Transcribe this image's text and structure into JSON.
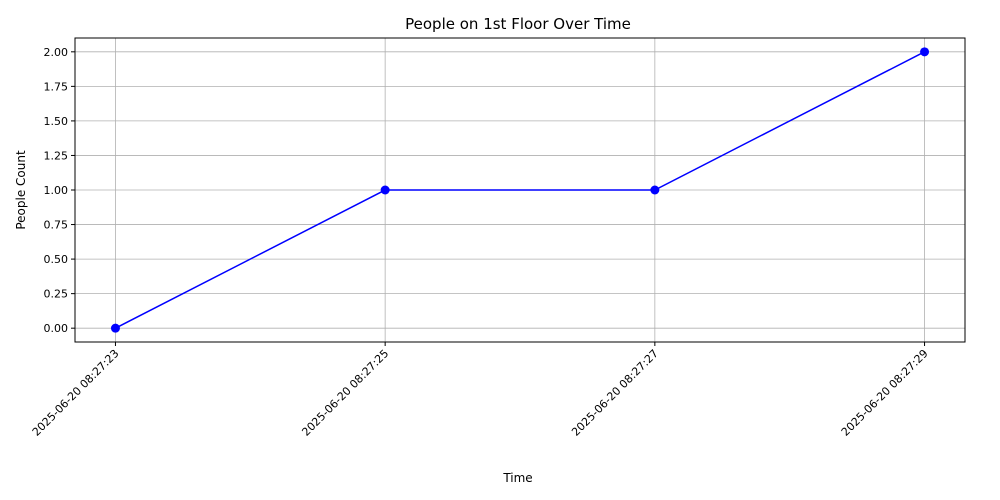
{
  "chart_data": {
    "type": "line",
    "title": "People on 1st Floor Over Time",
    "xlabel": "Time",
    "ylabel": "People Count",
    "x": [
      "2025-06-20 08:27:23",
      "2025-06-20 08:27:25",
      "2025-06-20 08:27:27",
      "2025-06-20 08:27:29"
    ],
    "series": [
      {
        "values": [
          0,
          1,
          1,
          2
        ],
        "color": "#0000ff",
        "marker": "circle"
      }
    ],
    "ylim": [
      -0.1,
      2.1
    ],
    "yticks": [
      "0.00",
      "0.25",
      "0.50",
      "0.75",
      "1.00",
      "1.25",
      "1.50",
      "1.75",
      "2.00"
    ],
    "grid": true,
    "legend": "none"
  }
}
